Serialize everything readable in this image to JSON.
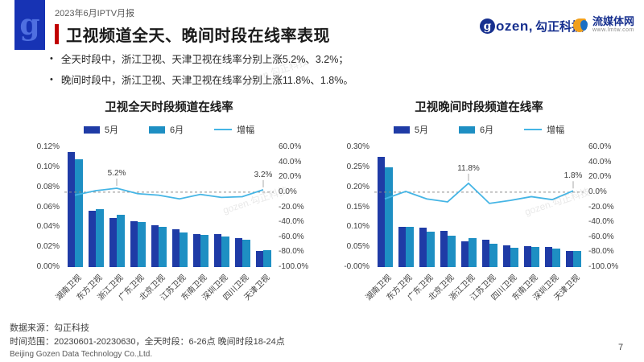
{
  "header": {
    "report_label": "2023年6月IPTV月报",
    "title": "卫视频道全天、晚间时段在线率表现",
    "logo_letter": "g",
    "brand_gozen_g": "g",
    "brand_gozen_latin": "ozen,",
    "brand_gozen_cjk": "勾正科技",
    "brand_media_name": "流媒体网",
    "brand_media_url": "www.lmtw.com"
  },
  "bullets": [
    "全天时段中，浙江卫视、天津卫视在线率分别上涨5.2%、3.2%；",
    "晚间时段中，浙江卫视、天津卫视在线率分别上涨11.8%、1.8%。"
  ],
  "watermark": "gozen.勾正科技",
  "colors": {
    "may": "#1f3ba6",
    "jun": "#1e8fc3",
    "line": "#45b5e5",
    "accent_red": "#c00000",
    "brand_blue": "#1733b4"
  },
  "chart_data": [
    {
      "type": "bar",
      "title": "卫视全天时段频道在线率",
      "legend": [
        "5月",
        "6月",
        "增幅"
      ],
      "categories": [
        "湖南卫视",
        "东方卫视",
        "浙江卫视",
        "广东卫视",
        "北京卫视",
        "江苏卫视",
        "东南卫视",
        "深圳卫视",
        "四川卫视",
        "天津卫视"
      ],
      "series": [
        {
          "name": "5月",
          "values": [
            0.115,
            0.056,
            0.049,
            0.046,
            0.042,
            0.038,
            0.033,
            0.033,
            0.029,
            0.0165
          ]
        },
        {
          "name": "6月",
          "values": [
            0.108,
            0.058,
            0.052,
            0.045,
            0.04,
            0.035,
            0.032,
            0.031,
            0.027,
            0.017
          ]
        }
      ],
      "line_series": {
        "name": "增幅",
        "values": [
          -4,
          2,
          5.2,
          -2,
          -4,
          -9,
          -3,
          -7,
          -6,
          3.2
        ]
      },
      "left_axis": {
        "max": 0.12,
        "min": 0,
        "step": 0.02,
        "decimals": 2,
        "unit": "%"
      },
      "right_axis": {
        "max": 60,
        "min": -100,
        "step": 20,
        "decimals": 1,
        "unit": "%"
      },
      "grid": "zero-dashed-line-only",
      "legend_position": "top",
      "annotations": [
        {
          "index": 2,
          "text": "5.2%"
        },
        {
          "index": 9,
          "text": "3.2%"
        }
      ]
    },
    {
      "type": "bar",
      "title": "卫视晚间时段频道在线率",
      "legend": [
        "5月",
        "6月",
        "增幅"
      ],
      "categories": [
        "湖南卫视",
        "东方卫视",
        "广东卫视",
        "北京卫视",
        "浙江卫视",
        "江苏卫视",
        "四川卫视",
        "东南卫视",
        "深圳卫视",
        "天津卫视"
      ],
      "series": [
        {
          "name": "5月",
          "values": [
            0.275,
            0.1,
            0.098,
            0.091,
            0.065,
            0.068,
            0.055,
            0.052,
            0.051,
            0.04
          ]
        },
        {
          "name": "6月",
          "values": [
            0.25,
            0.101,
            0.089,
            0.079,
            0.073,
            0.058,
            0.049,
            0.05,
            0.046,
            0.041
          ]
        }
      ],
      "line_series": {
        "name": "增幅",
        "values": [
          -9,
          1,
          -9,
          -13,
          11.8,
          -15,
          -11,
          -6,
          -10,
          1.8
        ]
      },
      "left_axis": {
        "max": 0.3,
        "min": 0,
        "step": 0.05,
        "decimals": 2,
        "unit": "%"
      },
      "right_axis": {
        "max": 60,
        "min": -100,
        "step": 20,
        "decimals": 1,
        "unit": "%"
      },
      "grid": "zero-dashed-line-only",
      "legend_position": "top",
      "annotations": [
        {
          "index": 4,
          "text": "11.8%"
        },
        {
          "index": 9,
          "text": "1.8%"
        }
      ]
    }
  ],
  "footer": {
    "line1": "数据来源：勾正科技",
    "line2": "时间范围：20230601-20230630，全天时段：6-26点  晚间时段18-24点",
    "line3": "Beijing Gozen Data Technology Co.,Ltd.",
    "page_number": "7"
  }
}
